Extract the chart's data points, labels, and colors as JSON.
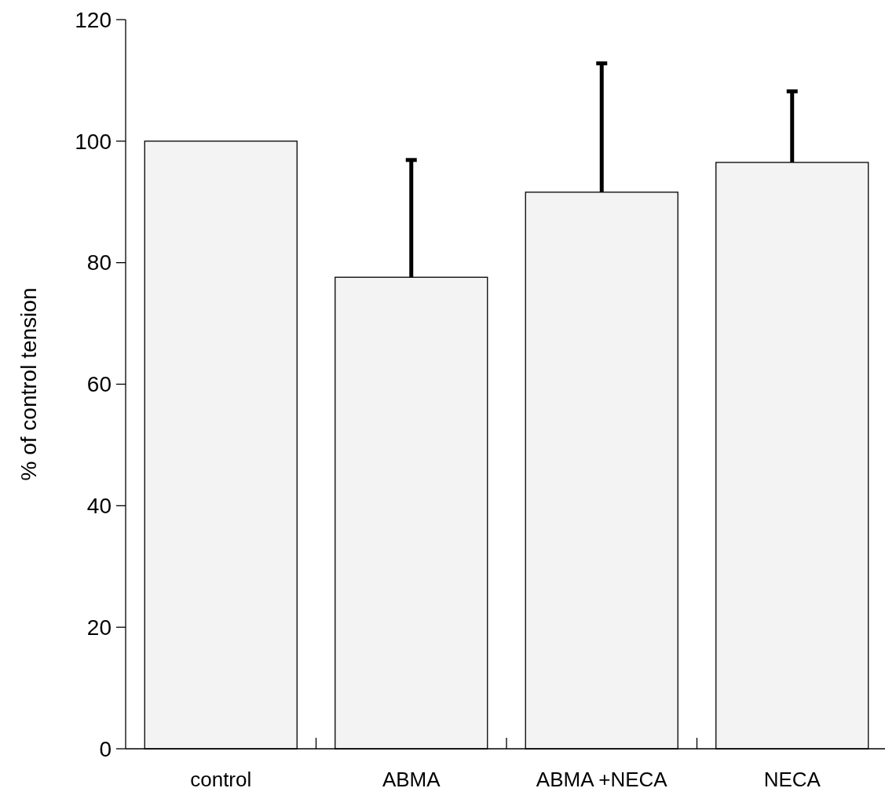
{
  "chart_data": {
    "type": "bar",
    "ylabel": "% of control tension",
    "categories": [
      "control",
      "ABMA",
      "ABMA +NECA",
      "NECA"
    ],
    "values": [
      100,
      77.6,
      91.6,
      96.5
    ],
    "errors": [
      null,
      [
        77.6,
        96.9
      ],
      [
        91.6,
        112.8
      ],
      [
        96.5,
        108.2
      ]
    ],
    "color": "#f3f3f3",
    "ylim": [
      0,
      120
    ],
    "yticks": [
      0,
      20,
      40,
      60,
      80,
      100,
      120
    ],
    "grid": false
  }
}
